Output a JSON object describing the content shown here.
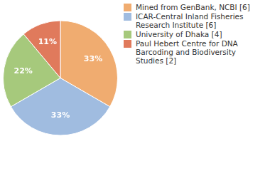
{
  "chart_data": {
    "type": "pie",
    "categories": [
      "Mined from GenBank, NCBI [6]",
      "ICAR-Central Inland Fisheries Research Institute [6]",
      "University of Dhaka [4]",
      "Paul Hebert Centre for DNA Barcoding and Biodiversity Studies [2]"
    ],
    "values": [
      33,
      33,
      22,
      11
    ],
    "value_labels": [
      "33%",
      "33%",
      "22%",
      "11%"
    ],
    "colors": [
      "#f0ac70",
      "#a0bce0",
      "#a6c97c",
      "#e07a5c"
    ],
    "data_labels": true,
    "legend": "right"
  }
}
